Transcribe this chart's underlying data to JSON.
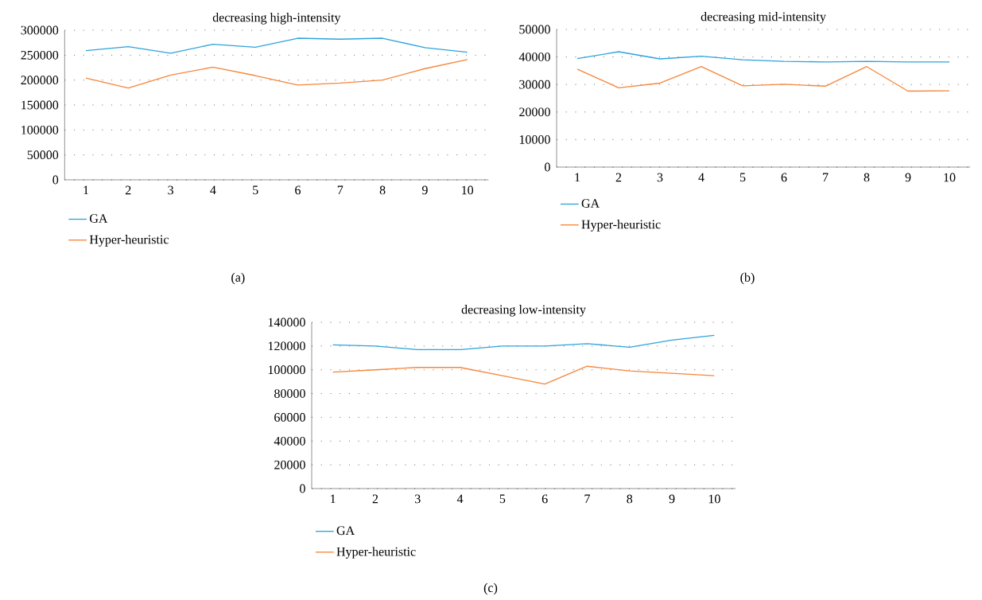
{
  "chart_data": [
    {
      "type": "line",
      "title": "decreasing high-intensity",
      "categories": [
        "1",
        "2",
        "3",
        "4",
        "5",
        "6",
        "7",
        "8",
        "9",
        "10"
      ],
      "ylim": [
        0,
        300000
      ],
      "yticks": [
        0,
        50000,
        100000,
        150000,
        200000,
        250000,
        300000
      ],
      "grid": "y",
      "legend": "bottom",
      "annotations": [
        "(a)"
      ],
      "series": [
        {
          "name": "GA",
          "color": "#2ea3dc",
          "values": [
            259000,
            267000,
            254000,
            272000,
            266000,
            284000,
            282000,
            284000,
            265000,
            256000
          ]
        },
        {
          "name": "Hyper-heuristic",
          "color": "#f5863a",
          "values": [
            204000,
            184000,
            210000,
            226000,
            209000,
            190000,
            194000,
            200000,
            223000,
            241000
          ]
        }
      ]
    },
    {
      "type": "line",
      "title": "decreasing mid-intensity",
      "categories": [
        "1",
        "2",
        "3",
        "4",
        "5",
        "6",
        "7",
        "8",
        "9",
        "10"
      ],
      "ylim": [
        0,
        50000
      ],
      "yticks": [
        0,
        10000,
        20000,
        30000,
        40000,
        50000
      ],
      "grid": "y",
      "legend": "bottom",
      "annotations": [
        "(b)"
      ],
      "series": [
        {
          "name": "GA",
          "color": "#2ea3dc",
          "values": [
            39400,
            41900,
            39300,
            40300,
            39000,
            38400,
            38200,
            38400,
            38200,
            38200
          ]
        },
        {
          "name": "Hyper-heuristic",
          "color": "#f5863a",
          "values": [
            35600,
            28800,
            30500,
            36500,
            29500,
            30100,
            29400,
            36500,
            27600,
            27700
          ]
        }
      ]
    },
    {
      "type": "line",
      "title": "decreasing low-intensity",
      "categories": [
        "1",
        "2",
        "3",
        "4",
        "5",
        "6",
        "7",
        "8",
        "9",
        "10"
      ],
      "ylim": [
        0,
        140000
      ],
      "yticks": [
        0,
        20000,
        40000,
        60000,
        80000,
        100000,
        120000,
        140000
      ],
      "grid": "y",
      "legend": "bottom",
      "annotations": [
        "(c)"
      ],
      "series": [
        {
          "name": "GA",
          "color": "#2ea3dc",
          "values": [
            121000,
            120000,
            117000,
            117000,
            120000,
            120000,
            122000,
            119000,
            125000,
            129000
          ]
        },
        {
          "name": "Hyper-heuristic",
          "color": "#f5863a",
          "values": [
            98000,
            100000,
            102000,
            102000,
            95000,
            88000,
            103000,
            99000,
            97000,
            95000
          ]
        }
      ]
    }
  ]
}
